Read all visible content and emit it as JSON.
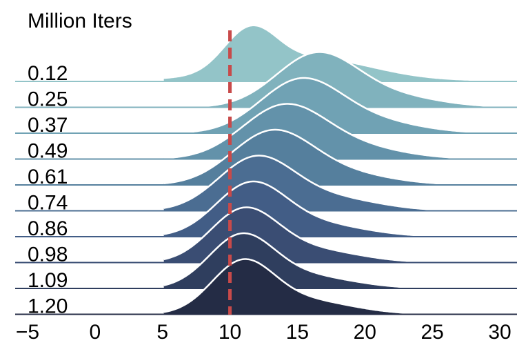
{
  "chart_data": {
    "type": "area",
    "legend_title": "Million Iters",
    "xlim": [
      -5,
      31
    ],
    "x_ticks": [
      -5,
      0,
      5,
      10,
      15,
      20,
      25,
      30
    ],
    "x_tick_labels": [
      "−5",
      "0",
      "5",
      "10",
      "15",
      "20",
      "25",
      "30"
    ],
    "reference_line": {
      "x": 10,
      "color": "#c84a4a",
      "style": "dashed"
    },
    "grid": false,
    "series": [
      {
        "name": "0.12",
        "color": "#93c4c8",
        "outline": false,
        "peaks": [
          {
            "mu": 11.5,
            "s": 1.9,
            "a": 1.0
          },
          {
            "mu": 16,
            "s": 4.5,
            "a": 0.55
          },
          {
            "mu": 6,
            "s": 4,
            "a": 0.03
          }
        ]
      },
      {
        "name": "0.25",
        "color": "#80b2bd",
        "outline": true,
        "peaks": [
          {
            "mu": 16.4,
            "s": 3.0,
            "a": 1.0
          },
          {
            "mu": 22,
            "s": 3.5,
            "a": 0.2
          }
        ]
      },
      {
        "name": "0.37",
        "color": "#70a2b4",
        "outline": true,
        "peaks": [
          {
            "mu": 15.2,
            "s": 3.0,
            "a": 1.0
          },
          {
            "mu": 20.5,
            "s": 3.5,
            "a": 0.22
          }
        ]
      },
      {
        "name": "0.49",
        "color": "#6392aa",
        "outline": true,
        "peaks": [
          {
            "mu": 14.0,
            "s": 3.1,
            "a": 1.0
          },
          {
            "mu": 19.5,
            "s": 3.5,
            "a": 0.2
          }
        ]
      },
      {
        "name": "0.61",
        "color": "#557f9d",
        "outline": true,
        "peaks": [
          {
            "mu": 13.1,
            "s": 3.0,
            "a": 1.0
          },
          {
            "mu": 18.5,
            "s": 3.5,
            "a": 0.2
          }
        ]
      },
      {
        "name": "0.74",
        "color": "#4b6d92",
        "outline": true,
        "peaks": [
          {
            "mu": 11.9,
            "s": 2.8,
            "a": 1.0
          },
          {
            "mu": 17.5,
            "s": 3.5,
            "a": 0.24
          }
        ]
      },
      {
        "name": "0.86",
        "color": "#425d86",
        "outline": true,
        "peaks": [
          {
            "mu": 11.5,
            "s": 2.6,
            "a": 1.0
          },
          {
            "mu": 16.5,
            "s": 3.5,
            "a": 0.24
          }
        ]
      },
      {
        "name": "0.98",
        "color": "#3a4d73",
        "outline": true,
        "peaks": [
          {
            "mu": 11.0,
            "s": 2.5,
            "a": 1.0
          },
          {
            "mu": 16,
            "s": 3.5,
            "a": 0.25
          }
        ]
      },
      {
        "name": "1.09",
        "color": "#2f3e5e",
        "outline": true,
        "peaks": [
          {
            "mu": 10.8,
            "s": 2.4,
            "a": 1.0
          },
          {
            "mu": 15.5,
            "s": 3.5,
            "a": 0.25
          }
        ]
      },
      {
        "name": "1.20",
        "color": "#242c45",
        "outline": true,
        "peaks": [
          {
            "mu": 10.9,
            "s": 2.3,
            "a": 1.0
          },
          {
            "mu": 15.5,
            "s": 3.5,
            "a": 0.28
          }
        ]
      }
    ]
  }
}
